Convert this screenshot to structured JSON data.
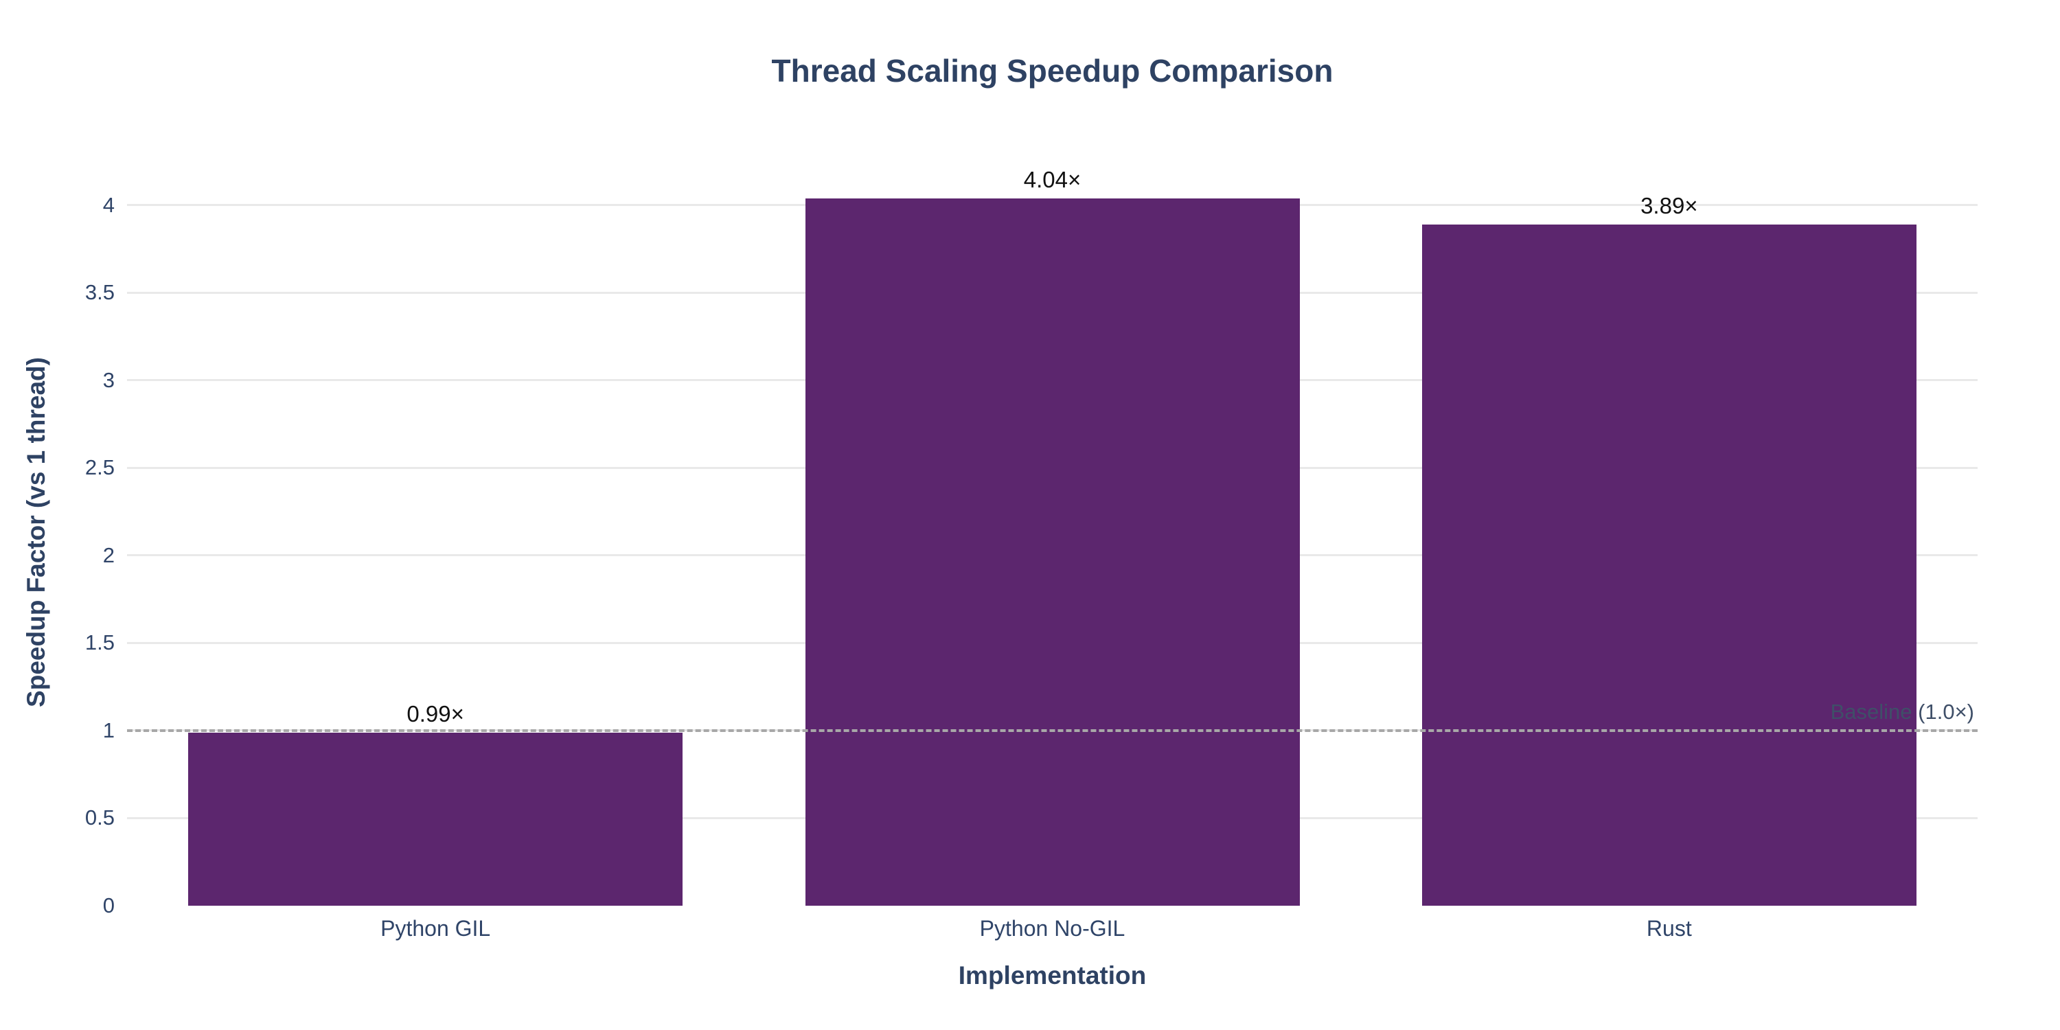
{
  "chart_data": {
    "type": "bar",
    "title": "Thread Scaling Speedup Comparison",
    "xlabel": "Implementation",
    "ylabel": "Speedup Factor (vs 1 thread)",
    "categories": [
      "Python GIL",
      "Python No-GIL",
      "Rust"
    ],
    "values": [
      0.99,
      4.04,
      3.89
    ],
    "bar_labels": [
      "0.99×",
      "4.04×",
      "3.89×"
    ],
    "yticks": [
      0,
      0.5,
      1,
      1.5,
      2,
      2.5,
      3,
      3.5,
      4
    ],
    "ylim": [
      0,
      4.27
    ],
    "grid": true,
    "legend": "none",
    "baseline": {
      "value": 1.0,
      "label": "Baseline (1.0×)"
    },
    "colors": {
      "bar": "#5c266e",
      "title": "#2e4263",
      "tick": "#2f4468",
      "value_label": "#111111",
      "grid": "#e9e9e9",
      "baseline_line": "#a8a8a8",
      "baseline_label": "#3f4f68",
      "background": "#ffffff"
    }
  }
}
